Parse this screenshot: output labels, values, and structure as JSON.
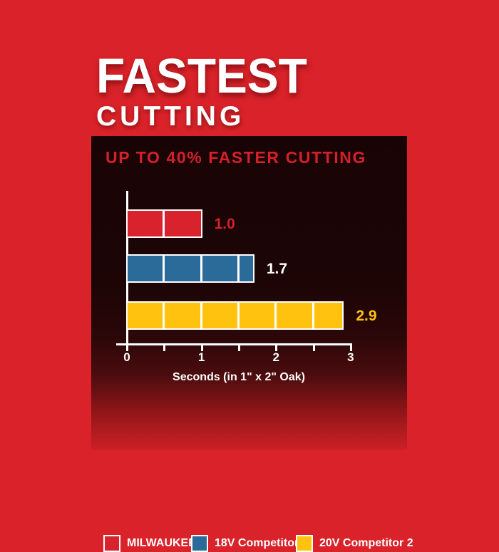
{
  "page": {
    "title_line1": "FASTEST",
    "title_line2": "CUTTING",
    "background_color": "#D92229"
  },
  "panel": {
    "heading": "UP TO 40% FASTER CUTTING",
    "heading_color": "#D4202A",
    "top_color": "#190405",
    "bottom_color": "#CC2026"
  },
  "chart_data": {
    "type": "bar",
    "orientation": "horizontal",
    "title": "UP TO 40% FASTER CUTTING",
    "categories": [
      "MILWAUKEE®",
      "18V Competitor 1",
      "20V Competitor 2"
    ],
    "values": [
      1.0,
      1.7,
      2.9
    ],
    "value_labels": [
      "1.0",
      "1.7",
      "2.9"
    ],
    "series_colors": [
      "#D8232E",
      "#2A6B99",
      "#FFC20E"
    ],
    "value_label_colors": [
      "#D4212B",
      "#FFFFFF",
      "#FFC20E"
    ],
    "xlabel": "Seconds (in 1\" x 2\" Oak)",
    "xlim": [
      0,
      3
    ],
    "x_ticks": [
      0,
      1,
      2,
      3
    ],
    "x_tick_labels": [
      "0",
      "1",
      "2",
      "3"
    ],
    "minor_ticks": [
      0.5,
      1.5,
      2.5
    ],
    "segment_interval": 0.5,
    "grid": false,
    "legend_position": "bottom"
  },
  "legend": {
    "items": [
      {
        "label": "MILWAUKEE®",
        "color": "#D8232E"
      },
      {
        "label": "18V Competitor 1",
        "color": "#2A6B99"
      },
      {
        "label": "20V Competitor 2",
        "color": "#FFC20E"
      }
    ]
  }
}
